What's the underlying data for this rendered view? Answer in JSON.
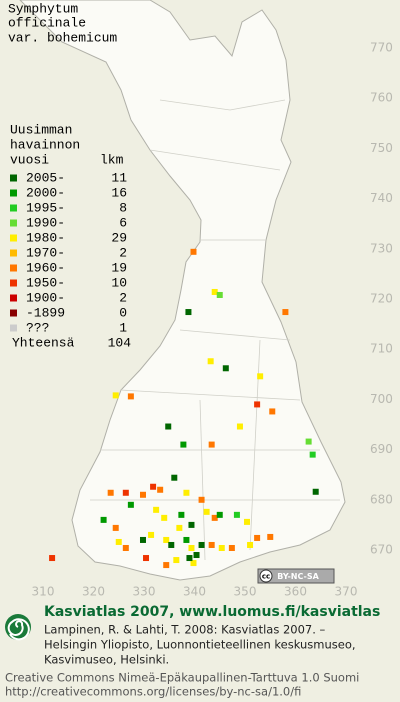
{
  "title": [
    "Symphytum",
    "officinale",
    "var. bohemicum"
  ],
  "legend": {
    "heading": [
      "Uusimman",
      "havainnon",
      "vuosi"
    ],
    "count_heading": "lkm",
    "items": [
      {
        "label": "2005-",
        "count": 11,
        "color": "#006600"
      },
      {
        "label": "2000-",
        "count": 16,
        "color": "#009900"
      },
      {
        "label": "1995-",
        "count": 8,
        "color": "#22cc22"
      },
      {
        "label": "1990-",
        "count": 6,
        "color": "#66dd33"
      },
      {
        "label": "1980-",
        "count": 29,
        "color": "#ffee00"
      },
      {
        "label": "1970-",
        "count": 2,
        "color": "#ffbb00"
      },
      {
        "label": "1960-",
        "count": 19,
        "color": "#ff7700"
      },
      {
        "label": "1950-",
        "count": 10,
        "color": "#ee3300"
      },
      {
        "label": "1900-",
        "count": 2,
        "color": "#cc0000"
      },
      {
        "label": "-1899",
        "count": 0,
        "color": "#880000"
      },
      {
        "label": "???",
        "count": 1,
        "color": "#cccccc"
      }
    ],
    "total_label": "Yhteensä",
    "total": 104
  },
  "grid": {
    "y_labels": [
      770,
      760,
      750,
      740,
      730,
      720,
      710,
      700,
      690,
      680,
      670
    ],
    "x_labels": [
      310,
      320,
      330,
      340,
      350,
      360,
      370
    ]
  },
  "observations": [
    {
      "x": 339.8,
      "y": 729.4,
      "period": "1960-"
    },
    {
      "x": 344,
      "y": 721.4,
      "period": "1980-"
    },
    {
      "x": 345,
      "y": 720.8,
      "period": "1990-"
    },
    {
      "x": 338.8,
      "y": 717.4,
      "period": "2005-"
    },
    {
      "x": 358,
      "y": 717.4,
      "period": "1960-"
    },
    {
      "x": 343.2,
      "y": 707.6,
      "period": "1980-"
    },
    {
      "x": 346.2,
      "y": 706.2,
      "period": "2005-"
    },
    {
      "x": 353,
      "y": 704.6,
      "period": "1980-"
    },
    {
      "x": 324.4,
      "y": 700.8,
      "period": "1980-"
    },
    {
      "x": 327.4,
      "y": 700.6,
      "period": "1960-"
    },
    {
      "x": 352.4,
      "y": 699,
      "period": "1950-"
    },
    {
      "x": 355.4,
      "y": 697.6,
      "period": "1960-"
    },
    {
      "x": 334.8,
      "y": 694.6,
      "period": "2005-"
    },
    {
      "x": 349,
      "y": 694.6,
      "period": "1980-"
    },
    {
      "x": 337.8,
      "y": 691,
      "period": "2000-"
    },
    {
      "x": 343.4,
      "y": 691,
      "period": "1960-"
    },
    {
      "x": 362.6,
      "y": 691.6,
      "period": "1990-"
    },
    {
      "x": 363.4,
      "y": 689,
      "period": "1995-"
    },
    {
      "x": 364,
      "y": 681.6,
      "period": "2005-"
    },
    {
      "x": 336,
      "y": 684.4,
      "period": "2005-"
    },
    {
      "x": 338.4,
      "y": 681.4,
      "period": "1980-"
    },
    {
      "x": 331.8,
      "y": 682.6,
      "period": "1950-"
    },
    {
      "x": 323.4,
      "y": 681.4,
      "period": "1960-"
    },
    {
      "x": 326.4,
      "y": 681.4,
      "period": "1950-"
    },
    {
      "x": 329.8,
      "y": 681,
      "period": "1960-"
    },
    {
      "x": 333.2,
      "y": 682,
      "period": "1960-"
    },
    {
      "x": 327.4,
      "y": 679,
      "period": "2000-"
    },
    {
      "x": 341.4,
      "y": 680,
      "period": "1960-"
    },
    {
      "x": 342.4,
      "y": 677.6,
      "period": "1980-"
    },
    {
      "x": 344,
      "y": 676.4,
      "period": "1960-"
    },
    {
      "x": 345,
      "y": 677,
      "period": "2000-"
    },
    {
      "x": 337.4,
      "y": 677,
      "period": "2000-"
    },
    {
      "x": 337,
      "y": 674.4,
      "period": "1980-"
    },
    {
      "x": 339.4,
      "y": 675,
      "period": "2005-"
    },
    {
      "x": 332.4,
      "y": 678,
      "period": "1980-"
    },
    {
      "x": 334,
      "y": 676.4,
      "period": "1980-"
    },
    {
      "x": 348.4,
      "y": 677,
      "period": "1995-"
    },
    {
      "x": 350.4,
      "y": 675.6,
      "period": "1980-"
    },
    {
      "x": 322,
      "y": 676,
      "period": "2000-"
    },
    {
      "x": 324.4,
      "y": 674.4,
      "period": "1960-"
    },
    {
      "x": 325,
      "y": 671.6,
      "period": "1980-"
    },
    {
      "x": 326.4,
      "y": 670.4,
      "period": "1960-"
    },
    {
      "x": 329.8,
      "y": 672,
      "period": "2005-"
    },
    {
      "x": 331.4,
      "y": 673,
      "period": "1980-"
    },
    {
      "x": 334.4,
      "y": 672,
      "period": "1980-"
    },
    {
      "x": 335.4,
      "y": 671,
      "period": "2005-"
    },
    {
      "x": 338.4,
      "y": 672,
      "period": "2000-"
    },
    {
      "x": 339.4,
      "y": 670.4,
      "period": "1980-"
    },
    {
      "x": 340.4,
      "y": 669,
      "period": "2005-"
    },
    {
      "x": 341.4,
      "y": 671,
      "period": "2005-"
    },
    {
      "x": 343.4,
      "y": 671,
      "period": "1960-"
    },
    {
      "x": 345.4,
      "y": 670.4,
      "period": "1980-"
    },
    {
      "x": 347.4,
      "y": 670.4,
      "period": "1960-"
    },
    {
      "x": 351,
      "y": 671,
      "period": "1980-"
    },
    {
      "x": 352.4,
      "y": 672.4,
      "period": "1960-"
    },
    {
      "x": 355,
      "y": 672.6,
      "period": "1960-"
    },
    {
      "x": 311.8,
      "y": 668.4,
      "period": "1950-"
    },
    {
      "x": 330.4,
      "y": 668.4,
      "period": "1950-"
    },
    {
      "x": 334.4,
      "y": 667,
      "period": "1960-"
    },
    {
      "x": 336.4,
      "y": 668,
      "period": "1980-"
    },
    {
      "x": 339.8,
      "y": 667.4,
      "period": "1980-"
    },
    {
      "x": 339,
      "y": 668.4,
      "period": "2005-"
    }
  ],
  "badge": {
    "cc": "cc",
    "text": "BY-NC-SA"
  },
  "footer": {
    "heading": "Kasviatlas 2007, www.luomus.fi/kasviatlas",
    "citation": [
      "Lampinen, R. & Lahti, T. 2008: Kasviatlas 2007. –",
      "Helsingin Yliopisto, Luonnontieteellinen keskusmuseo,",
      "Kasvimuseo, Helsinki."
    ],
    "license": [
      "Creative Commons Nimeä-Epäkaupallinen-Tarttuva 1.0 Suomi",
      "http://creativecommons.org/licenses/by-nc-sa/1.0/fi"
    ]
  }
}
